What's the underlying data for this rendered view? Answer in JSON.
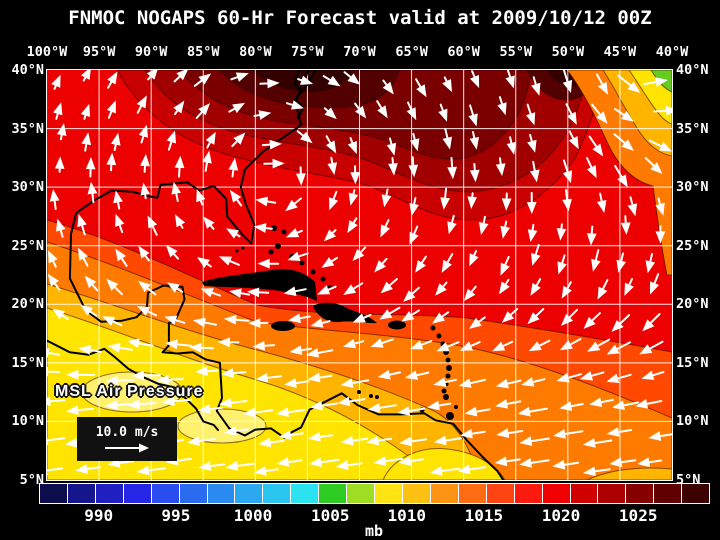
{
  "title": "FNMOC NOGAPS 60-Hr Forecast valid at 2009/10/12 00Z",
  "axes": {
    "lon_labels": [
      "100°W",
      "95°W",
      "90°W",
      "85°W",
      "80°W",
      "75°W",
      "70°W",
      "65°W",
      "60°W",
      "55°W",
      "50°W",
      "45°W",
      "40°W"
    ],
    "lat_labels": [
      "40°N",
      "35°N",
      "30°N",
      "25°N",
      "20°N",
      "15°N",
      "10°N",
      "5°N"
    ]
  },
  "map": {
    "field_label": "MSL Air Pressure",
    "wind_legend_label": "10.0 m/s"
  },
  "colorbar": {
    "unit_label": "mb",
    "tick_labels": [
      "990",
      "995",
      "1000",
      "1005",
      "1010",
      "1015",
      "1020",
      "1025"
    ],
    "tick_positions": [
      0.089,
      0.204,
      0.319,
      0.434,
      0.548,
      0.663,
      0.778,
      0.893
    ],
    "segment_colors": [
      "#0D0D4D",
      "#16168C",
      "#2020C0",
      "#2626E6",
      "#2B4DF0",
      "#2B6BF0",
      "#2B8AF0",
      "#2BA8F0",
      "#2BC6F0",
      "#2BE3F0",
      "#2ECC22",
      "#9FDD22",
      "#FFE414",
      "#FFC014",
      "#FF9414",
      "#FF6C14",
      "#FF4414",
      "#FF1A10",
      "#F00000",
      "#D00000",
      "#AC0000",
      "#860000",
      "#600000",
      "#3C0000"
    ]
  },
  "palette": {
    "base_red": "#ED0000",
    "dark_red": "#C80000",
    "darker_red": "#A00000",
    "maroon": "#7A0000",
    "dark_maroon": "#520000",
    "deepest_maroon": "#330000",
    "orange_red": "#FF4800",
    "orange": "#FF7B00",
    "gold": "#FFB400",
    "yellow": "#FFE400",
    "pale_yellow": "#FFF06E",
    "green": "#66CC22",
    "grid": "#FFFFFF",
    "coast": "#000000",
    "wind": "#FFFFFF"
  }
}
